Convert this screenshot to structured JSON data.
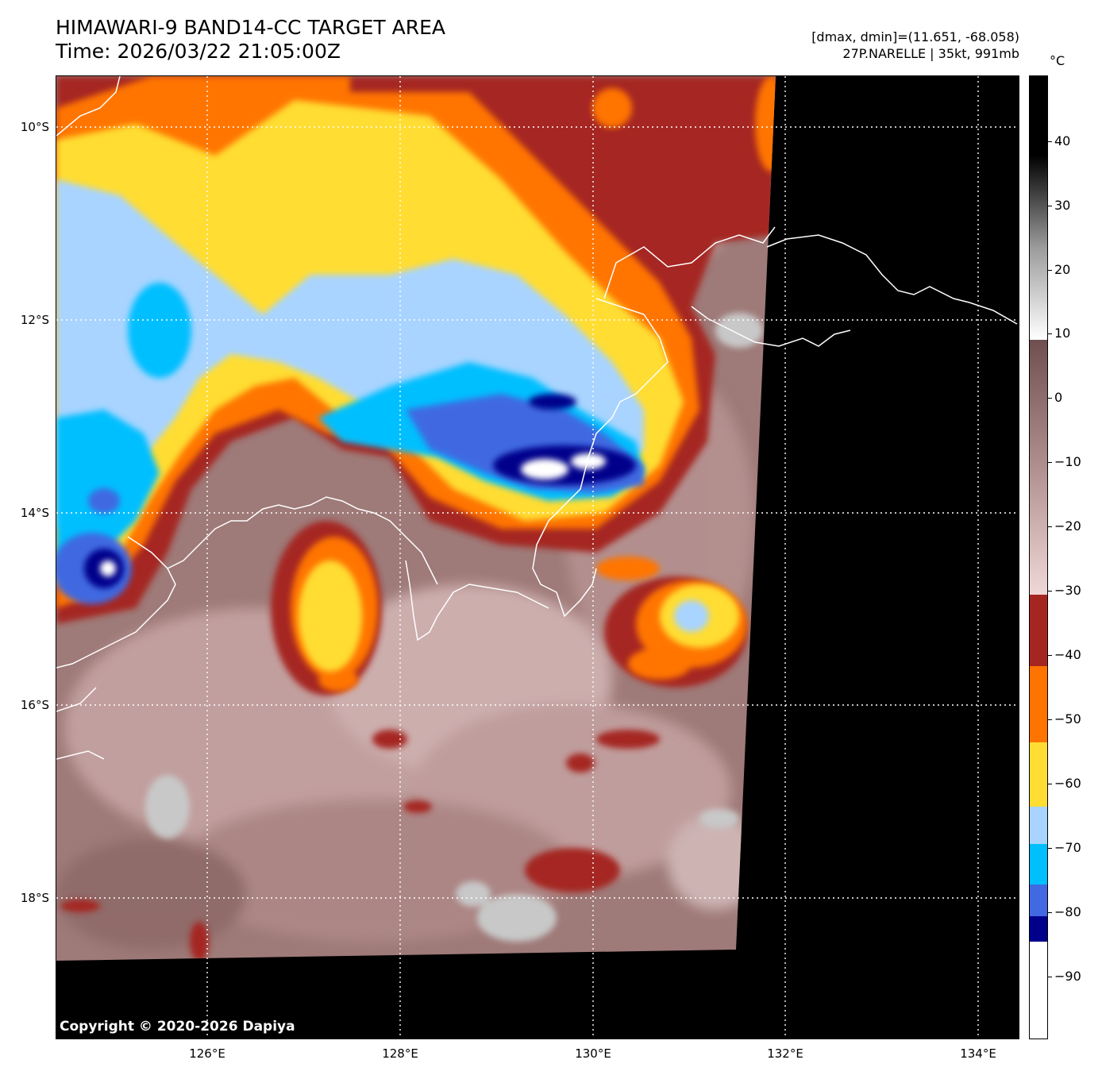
{
  "header": {
    "title_line1": "HIMAWARI-9 BAND14-CC TARGET AREA",
    "title_line2": "Time: 2026/03/22 21:05:00Z",
    "range_text": "[dmax, dmin]=(11.651, -68.058)",
    "storm_text": "27P.NARELLE | 35kt, 991mb"
  },
  "map": {
    "copyright": "Copyright © 2020-2026 Dapiya",
    "lat_labels": [
      "10°S",
      "12°S",
      "14°S",
      "16°S",
      "18°S"
    ],
    "lon_labels": [
      "126°E",
      "128°E",
      "130°E",
      "132°E",
      "134°E"
    ],
    "gridline_style": "dotted white",
    "coastline_color": "#ffffff",
    "no_data_color": "#000000"
  },
  "colorbar": {
    "unit": "°C",
    "ticks": [
      "40",
      "30",
      "20",
      "10",
      "0",
      "−10",
      "−20",
      "−30",
      "−40",
      "−50",
      "−60",
      "−70",
      "−80",
      "−90"
    ],
    "colors": {
      "warm_top": "#000000",
      "warm_gray": "#9b9b9b",
      "white_10": "#ffffff",
      "brown": "#6f4f4f",
      "pink": "#f0d8d8",
      "dark_red": "#a52620",
      "orange": "#ff7400",
      "yellow": "#ffdd33",
      "light_blue": "#a8d4ff",
      "cyan": "#00bfff",
      "royal_blue": "#4169e1",
      "navy": "#00008b",
      "white_cold": "#ffffff"
    }
  }
}
